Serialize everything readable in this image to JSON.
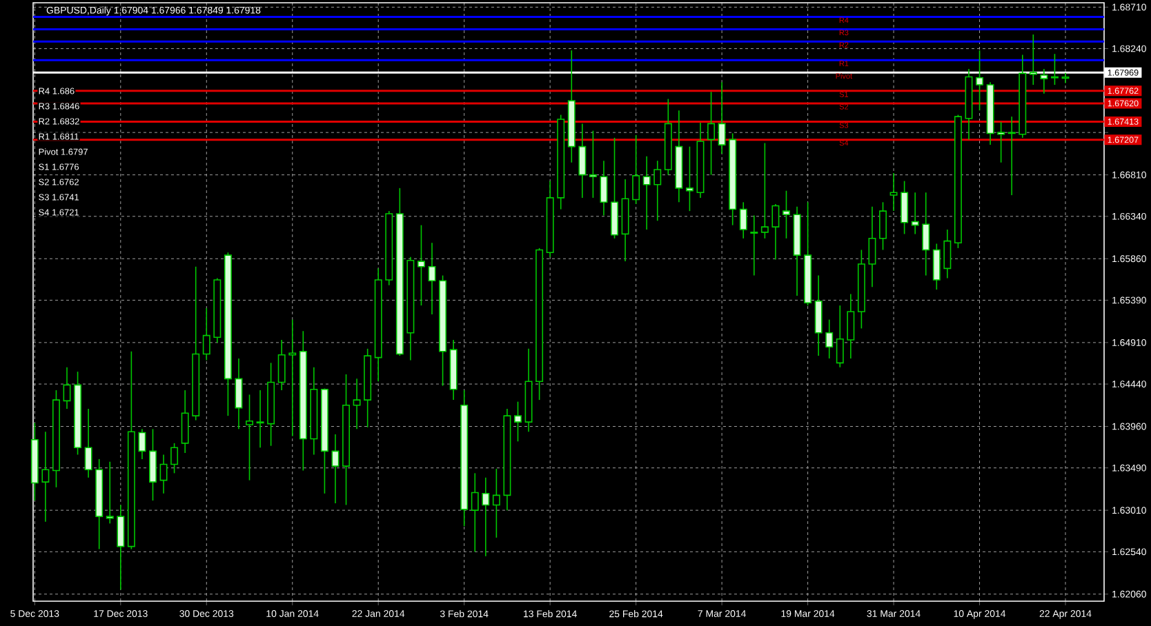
{
  "chart_data": {
    "type": "candlestick",
    "title": "GBPUSD,Daily 1.67904 1.67966 1.67849 1.67918",
    "categories": [
      "5 Dec 2013",
      null,
      null,
      null,
      null,
      null,
      null,
      null,
      "17 Dec 2013",
      null,
      null,
      null,
      null,
      null,
      null,
      null,
      "30 Dec 2013",
      null,
      null,
      null,
      null,
      null,
      null,
      null,
      "10 Jan 2014",
      null,
      null,
      null,
      null,
      null,
      null,
      null,
      "22 Jan 2014",
      null,
      null,
      null,
      null,
      null,
      null,
      null,
      "3 Feb 2014",
      null,
      null,
      null,
      null,
      null,
      null,
      null,
      "13 Feb 2014",
      null,
      null,
      null,
      null,
      null,
      null,
      null,
      "25 Feb 2014",
      null,
      null,
      null,
      null,
      null,
      null,
      null,
      "7 Mar 2014",
      null,
      null,
      null,
      null,
      null,
      null,
      null,
      "19 Mar 2014",
      null,
      null,
      null,
      null,
      null,
      null,
      null,
      "31 Mar 2014",
      null,
      null,
      null,
      null,
      null,
      null,
      null,
      "10 Apr 2014",
      null,
      null,
      null,
      null,
      null,
      null,
      null,
      "22 Apr 2014"
    ],
    "ohlc": [
      [
        1.6381,
        1.64,
        1.6312,
        1.6332
      ],
      [
        1.6333,
        1.639,
        1.6288,
        1.6347
      ],
      [
        1.6346,
        1.6437,
        1.6327,
        1.6426
      ],
      [
        1.6425,
        1.6463,
        1.6416,
        1.6443
      ],
      [
        1.6443,
        1.6458,
        1.6364,
        1.6372
      ],
      [
        1.6372,
        1.6416,
        1.6338,
        1.6347
      ],
      [
        1.6347,
        1.6359,
        1.6257,
        1.6294
      ],
      [
        1.6294,
        1.6356,
        1.6286,
        1.6292
      ],
      [
        1.6294,
        1.6307,
        1.6211,
        1.626
      ],
      [
        1.626,
        1.6481,
        1.6257,
        1.639
      ],
      [
        1.6389,
        1.6393,
        1.6359,
        1.6368
      ],
      [
        1.6368,
        1.6393,
        1.6312,
        1.6333
      ],
      [
        1.6335,
        1.6364,
        1.632,
        1.6353
      ],
      [
        1.6353,
        1.6377,
        1.6343,
        1.6372
      ],
      [
        1.6377,
        1.6437,
        1.6366,
        1.6411
      ],
      [
        1.6408,
        1.6577,
        1.6403,
        1.6478
      ],
      [
        1.6478,
        1.653,
        1.6471,
        1.6499
      ],
      [
        1.6497,
        1.6564,
        1.6491,
        1.6562
      ],
      [
        1.659,
        1.6593,
        1.6408,
        1.645
      ],
      [
        1.645,
        1.6473,
        1.6393,
        1.6417
      ],
      [
        1.6398,
        1.6432,
        1.6335,
        1.6402
      ],
      [
        1.6401,
        1.6437,
        1.6372,
        1.64
      ],
      [
        1.6399,
        1.6468,
        1.6374,
        1.6446
      ],
      [
        1.6446,
        1.6494,
        1.6437,
        1.6477
      ],
      [
        1.6477,
        1.6517,
        1.6385,
        1.6479
      ],
      [
        1.6481,
        1.6504,
        1.6346,
        1.6382
      ],
      [
        1.6382,
        1.6463,
        1.6364,
        1.6438
      ],
      [
        1.6438,
        1.6439,
        1.632,
        1.6368
      ],
      [
        1.6368,
        1.6387,
        1.6309,
        1.6351
      ],
      [
        1.6351,
        1.6455,
        1.6307,
        1.642
      ],
      [
        1.642,
        1.645,
        1.6393,
        1.6426
      ],
      [
        1.6426,
        1.6484,
        1.6395,
        1.6476
      ],
      [
        1.6474,
        1.6575,
        1.6447,
        1.6562
      ],
      [
        1.6562,
        1.664,
        1.6556,
        1.6637
      ],
      [
        1.6637,
        1.6666,
        1.6476,
        1.6478
      ],
      [
        1.6502,
        1.6588,
        1.6471,
        1.6584
      ],
      [
        1.6583,
        1.6624,
        1.6533,
        1.6577
      ],
      [
        1.6577,
        1.6604,
        1.6523,
        1.6561
      ],
      [
        1.6561,
        1.6567,
        1.6442,
        1.6481
      ],
      [
        1.6483,
        1.6494,
        1.6426,
        1.6438
      ],
      [
        1.642,
        1.6437,
        1.6283,
        1.6302
      ],
      [
        1.6301,
        1.6343,
        1.6254,
        1.6321
      ],
      [
        1.632,
        1.6338,
        1.6249,
        1.6307
      ],
      [
        1.6307,
        1.6348,
        1.627,
        1.6318
      ],
      [
        1.6318,
        1.6416,
        1.6301,
        1.6408
      ],
      [
        1.6408,
        1.6424,
        1.6379,
        1.6401
      ],
      [
        1.6401,
        1.6484,
        1.639,
        1.6447
      ],
      [
        1.6447,
        1.6598,
        1.6426,
        1.6596
      ],
      [
        1.6593,
        1.6674,
        1.6588,
        1.6655
      ],
      [
        1.6655,
        1.6749,
        1.6642,
        1.6744
      ],
      [
        1.6765,
        1.6822,
        1.6695,
        1.6713
      ],
      [
        1.6713,
        1.6739,
        1.6655,
        1.6681
      ],
      [
        1.6681,
        1.6731,
        1.6655,
        1.6679
      ],
      [
        1.6679,
        1.6697,
        1.6635,
        1.665
      ],
      [
        1.665,
        1.6723,
        1.6609,
        1.6613
      ],
      [
        1.6614,
        1.6676,
        1.6583,
        1.6654
      ],
      [
        1.6653,
        1.6726,
        1.6648,
        1.668
      ],
      [
        1.6679,
        1.6702,
        1.6619,
        1.667
      ],
      [
        1.667,
        1.6697,
        1.6629,
        1.6687
      ],
      [
        1.6687,
        1.6767,
        1.6681,
        1.6739
      ],
      [
        1.6713,
        1.6754,
        1.665,
        1.6666
      ],
      [
        1.6666,
        1.6713,
        1.664,
        1.6663
      ],
      [
        1.6661,
        1.674,
        1.6655,
        1.6719
      ],
      [
        1.6721,
        1.6775,
        1.6681,
        1.6739
      ],
      [
        1.6739,
        1.6786,
        1.6705,
        1.6715
      ],
      [
        1.6721,
        1.6728,
        1.6624,
        1.6642
      ],
      [
        1.6642,
        1.665,
        1.6609,
        1.6619
      ],
      [
        1.6616,
        1.6635,
        1.6567,
        1.6615
      ],
      [
        1.6616,
        1.6717,
        1.6609,
        1.6622
      ],
      [
        1.6622,
        1.6648,
        1.6585,
        1.6646
      ],
      [
        1.664,
        1.6663,
        1.6609,
        1.6636
      ],
      [
        1.6636,
        1.6645,
        1.6544,
        1.659
      ],
      [
        1.659,
        1.665,
        1.6533,
        1.6536
      ],
      [
        1.6538,
        1.6567,
        1.6476,
        1.6502
      ],
      [
        1.6502,
        1.6517,
        1.6473,
        1.6486
      ],
      [
        1.6468,
        1.6533,
        1.6463,
        1.6495
      ],
      [
        1.6494,
        1.6546,
        1.6473,
        1.6526
      ],
      [
        1.6526,
        1.6596,
        1.6507,
        1.658
      ],
      [
        1.658,
        1.6645,
        1.6554,
        1.6609
      ],
      [
        1.6609,
        1.665,
        1.6596,
        1.664
      ],
      [
        1.6658,
        1.6683,
        1.664,
        1.6661
      ],
      [
        1.6661,
        1.6674,
        1.6614,
        1.6627
      ],
      [
        1.6628,
        1.6661,
        1.6614,
        1.6624
      ],
      [
        1.6625,
        1.6661,
        1.6567,
        1.6596
      ],
      [
        1.6596,
        1.6603,
        1.6551,
        1.6562
      ],
      [
        1.6575,
        1.6619,
        1.6564,
        1.6606
      ],
      [
        1.6604,
        1.6749,
        1.6598,
        1.6747
      ],
      [
        1.6745,
        1.6801,
        1.6721,
        1.6792
      ],
      [
        1.6791,
        1.6822,
        1.6754,
        1.6783
      ],
      [
        1.6783,
        1.6786,
        1.6715,
        1.6728
      ],
      [
        1.6729,
        1.6741,
        1.6695,
        1.6727
      ],
      [
        1.6728,
        1.6747,
        1.6658,
        1.6729
      ],
      [
        1.6727,
        1.6817,
        1.6723,
        1.6796
      ],
      [
        1.6797,
        1.684,
        1.6783,
        1.6795
      ],
      [
        1.6794,
        1.6801,
        1.6773,
        1.679
      ],
      [
        1.6792,
        1.6818,
        1.6783,
        1.6791
      ],
      [
        1.67904,
        1.67966,
        1.67849,
        1.67918
      ]
    ],
    "color": "#00c800",
    "ylim": [
      1.6198,
      1.6876
    ],
    "yticks": [
      {
        "value": 1.6871,
        "label": "1.68710"
      },
      {
        "value": 1.6824,
        "label": "1.68240"
      },
      {
        "value": 1.6776,
        "label": null
      },
      {
        "value": 1.6729,
        "label": null
      },
      {
        "value": 1.6681,
        "label": "1.66810"
      },
      {
        "value": 1.6634,
        "label": "1.66340"
      },
      {
        "value": 1.6586,
        "label": "1.65860"
      },
      {
        "value": 1.6539,
        "label": "1.65390"
      },
      {
        "value": 1.6491,
        "label": "1.64910"
      },
      {
        "value": 1.6444,
        "label": "1.64440"
      },
      {
        "value": 1.6396,
        "label": "1.63960"
      },
      {
        "value": 1.6349,
        "label": "1.63490"
      },
      {
        "value": 1.6301,
        "label": "1.63010"
      },
      {
        "value": 1.6254,
        "label": "1.62540"
      },
      {
        "value": 1.6206,
        "label": "1.62060"
      }
    ],
    "grid": true,
    "ref_lines": [
      {
        "axis": "y",
        "value": 1.686,
        "label": null,
        "color": "#0000ff"
      },
      {
        "axis": "y",
        "value": 1.6846,
        "label": null,
        "color": "#0000ff"
      },
      {
        "axis": "y",
        "value": 1.6832,
        "label": null,
        "color": "#0000ff"
      },
      {
        "axis": "y",
        "value": 1.6811,
        "label": null,
        "color": "#0000ff"
      },
      {
        "axis": "y",
        "value": 1.67969,
        "label": "1.67969",
        "color": "#ffffff"
      },
      {
        "axis": "y",
        "value": 1.67762,
        "label": "1.67762",
        "color": "#e00000"
      },
      {
        "axis": "y",
        "value": 1.6762,
        "label": "1.67620",
        "color": "#e00000"
      },
      {
        "axis": "y",
        "value": 1.67413,
        "label": "1.67413",
        "color": "#e00000"
      },
      {
        "axis": "y",
        "value": 1.67207,
        "label": "1.67207",
        "color": "#e00000"
      }
    ],
    "annotations": [
      "R4 1.686",
      "R3 1.6846",
      "R2 1.6832",
      "R1 1.6811",
      "Pivot 1.6797",
      "S1 1.6776",
      "S2 1.6762",
      "S3 1.6741",
      "S4 1.6721",
      {
        "text": "R4",
        "y": 1.686
      },
      {
        "text": "R3",
        "y": 1.6846
      },
      {
        "text": "R2",
        "y": 1.6832
      },
      {
        "text": "R1",
        "y": 1.6811
      },
      {
        "text": "Pivot",
        "y": 1.6797
      },
      {
        "text": "S1",
        "y": 1.6776
      },
      {
        "text": "S2",
        "y": 1.6762
      },
      {
        "text": "S3",
        "y": 1.6741
      },
      {
        "text": "S4",
        "y": 1.6721
      }
    ]
  }
}
